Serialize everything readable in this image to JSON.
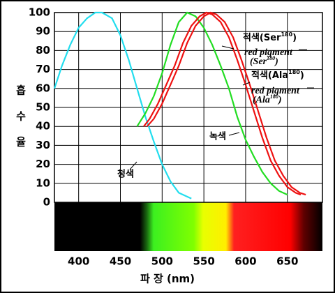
{
  "chart_data": {
    "type": "line",
    "y_label": [
      "흡",
      "수",
      "율"
    ],
    "x_label": "파  장 (nm)",
    "xlim": [
      371,
      692
    ],
    "ylim": [
      0,
      100
    ],
    "xticks": [
      400,
      450,
      500,
      550,
      600,
      650
    ],
    "yticks": [
      0,
      10,
      20,
      30,
      40,
      50,
      60,
      70,
      80,
      90,
      100
    ],
    "grid": true,
    "series": [
      {
        "name": "청색",
        "color": "#22ddee",
        "x": [
          371,
          380,
          390,
          400,
          410,
          420,
          428,
          440,
          450,
          460,
          470,
          480,
          490,
          500,
          510,
          520,
          535
        ],
        "values": [
          60,
          72,
          83,
          92,
          97,
          100,
          100,
          97,
          88,
          75,
          60,
          45,
          32,
          20,
          11,
          5,
          2
        ]
      },
      {
        "name": "녹색",
        "color": "#22dd22",
        "x": [
          470,
          480,
          490,
          500,
          510,
          520,
          530,
          540,
          550,
          560,
          570,
          580,
          590,
          600,
          610,
          620,
          630,
          640,
          650
        ],
        "values": [
          40,
          47,
          56,
          68,
          83,
          95,
          100,
          98,
          92,
          83,
          72,
          60,
          45,
          33,
          24,
          16,
          10,
          6,
          4
        ]
      },
      {
        "name": [
          "적색(Ser",
          "180",
          ")"
        ],
        "label": [
          "red pigment",
          "(Ser",
          "180",
          ")"
        ],
        "color": "#ee1111",
        "x": [
          482,
          490,
          500,
          510,
          520,
          530,
          540,
          550,
          558,
          565,
          575,
          585,
          595,
          605,
          615,
          625,
          635,
          645,
          655,
          665,
          672
        ],
        "values": [
          40,
          44,
          52,
          62,
          72,
          84,
          93,
          98,
          100,
          99,
          95,
          87,
          75,
          62,
          48,
          34,
          22,
          14,
          8,
          5,
          4
        ]
      },
      {
        "name": [
          "적색(Ala",
          "180",
          ")"
        ],
        "label": [
          "red pigment",
          "(Ala",
          "180",
          ")"
        ],
        "color": "#ee1111",
        "x": [
          478,
          485,
          495,
          505,
          515,
          525,
          535,
          545,
          553,
          560,
          570,
          580,
          590,
          600,
          610,
          620,
          630,
          640,
          650,
          660,
          666
        ],
        "values": [
          40,
          44,
          52,
          62,
          72,
          84,
          93,
          98,
          100,
          99,
          95,
          87,
          75,
          62,
          48,
          34,
          22,
          14,
          8,
          5,
          4
        ]
      }
    ]
  }
}
